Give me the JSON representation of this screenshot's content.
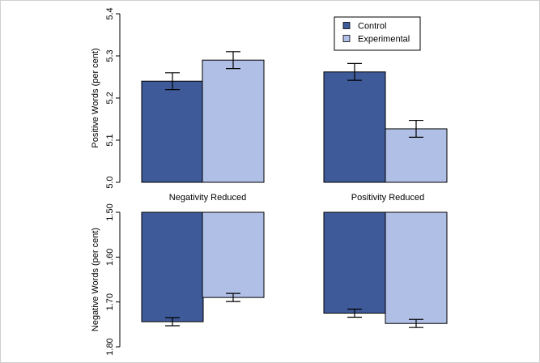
{
  "chart_data": [
    {
      "type": "bar",
      "ylabel": "Positive Words (per cent)",
      "ylim": [
        5.0,
        5.4
      ],
      "inverted": false,
      "yticks": [
        "5.0",
        "5.1",
        "5.2",
        "5.3",
        "5.4"
      ],
      "categories": [
        "Negativity Reduced",
        "Positivity Reduced"
      ],
      "series": [
        {
          "name": "Control",
          "color": "#3e5a99",
          "values": [
            5.24,
            5.262
          ],
          "errors": [
            0.02,
            0.02
          ]
        },
        {
          "name": "Experimental",
          "color": "#b0bfe6",
          "values": [
            5.29,
            5.127
          ],
          "errors": [
            0.02,
            0.02
          ]
        }
      ]
    },
    {
      "type": "bar",
      "ylabel": "Negative Words (per cent)",
      "ylim": [
        1.5,
        1.8
      ],
      "inverted": true,
      "yticks": [
        "1.50",
        "1.60",
        "1.70",
        "1.80"
      ],
      "categories": [
        "Negativity Reduced",
        "Positivity Reduced"
      ],
      "series": [
        {
          "name": "Control",
          "color": "#3e5a99",
          "values": [
            1.744,
            1.725
          ],
          "errors": [
            0.009,
            0.009
          ]
        },
        {
          "name": "Experimental",
          "color": "#b0bfe6",
          "values": [
            1.69,
            1.748
          ],
          "errors": [
            0.009,
            0.009
          ]
        }
      ]
    }
  ],
  "legend": {
    "position": "top-right",
    "items": [
      {
        "label": "Control",
        "color": "#3e5a99"
      },
      {
        "label": "Experimental",
        "color": "#b0bfe6"
      }
    ]
  }
}
